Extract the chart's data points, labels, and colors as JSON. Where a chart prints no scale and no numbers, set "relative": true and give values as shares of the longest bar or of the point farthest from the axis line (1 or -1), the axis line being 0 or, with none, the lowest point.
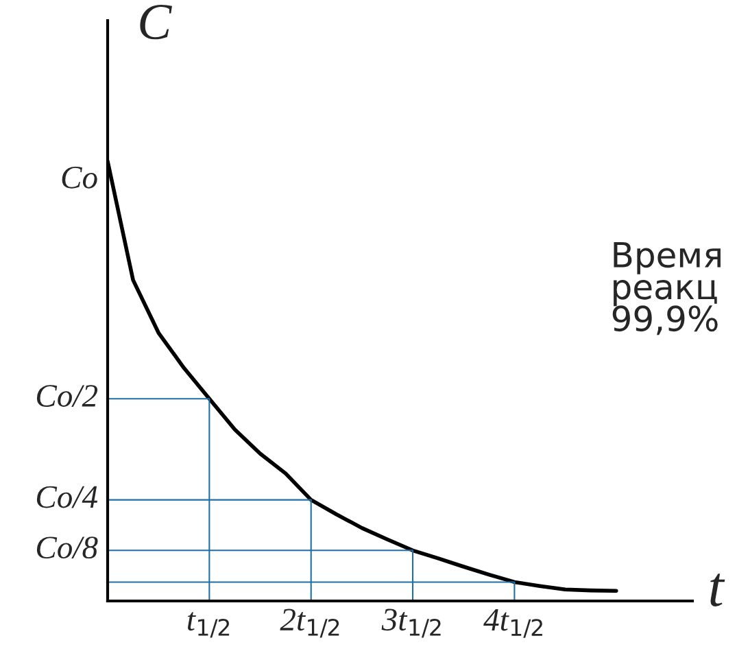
{
  "chart_data": {
    "type": "line",
    "xlabel": "t",
    "ylabel": "C",
    "relative": true,
    "marker": "none",
    "line_style": "solid",
    "categories": [
      null,
      null,
      null,
      null,
      "t$_{1/2}$",
      null,
      null,
      null,
      "2t$_{1/2}$",
      null,
      null,
      null,
      "3t$_{1/2}$",
      null,
      null,
      null,
      "4t$_{1/2}$",
      null,
      null,
      null,
      null
    ],
    "annotations": [
      "Время\nреакц\n99,9%",
      "Co",
      "Co/2",
      "Co/4",
      "Co/8"
    ],
    "series": [
      {
        "color": "#000000",
        "values": [
          1,
          0.73,
          0.61,
          0.53,
          0.46,
          0.39,
          0.335,
          0.29,
          0.23,
          0.197,
          0.166,
          0.14,
          0.115,
          0.097,
          0.078,
          0.06,
          0.043,
          0.034,
          0.026,
          0.024,
          0.023
        ]
      },
      {
        "type": "step",
        "color": "#1f6fa8",
        "values": [
          0.46,
          0.46,
          0.46,
          0.46,
          0.46,
          0,
          null,
          null,
          null,
          null,
          null,
          null,
          null,
          null,
          null,
          null,
          null,
          null,
          null,
          null,
          null
        ]
      },
      {
        "type": "step",
        "color": "#1f6fa8",
        "values": [
          0.23,
          0.23,
          0.23,
          0.23,
          0.23,
          0.23,
          0.23,
          0.23,
          0.23,
          0,
          null,
          null,
          null,
          null,
          null,
          null,
          null,
          null,
          null,
          null,
          null
        ]
      },
      {
        "type": "step",
        "color": "#1f6fa8",
        "values": [
          0.115,
          0.115,
          0.115,
          0.115,
          0.115,
          0.115,
          0.115,
          0.115,
          0.115,
          0.115,
          0.115,
          0.115,
          0.115,
          0,
          null,
          null,
          null,
          null,
          null,
          null,
          null
        ]
      },
      {
        "type": "step",
        "color": "#1f6fa8",
        "values": [
          0.043,
          0.043,
          0.043,
          0.043,
          0.043,
          0.043,
          0.043,
          0.043,
          0.043,
          0.043,
          0.043,
          0.043,
          0.043,
          0.043,
          0.043,
          0.043,
          0.043,
          0,
          null,
          null,
          null
        ]
      }
    ]
  }
}
